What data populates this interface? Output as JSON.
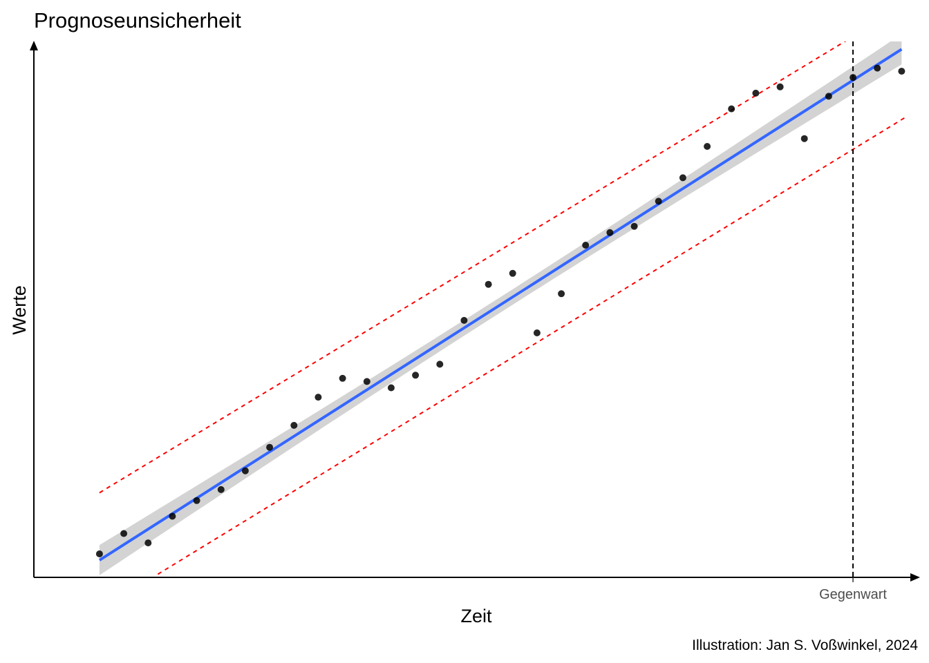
{
  "chart_data": {
    "type": "scatter",
    "title": "Prognoseunsicherheit",
    "xlabel": "Zeit",
    "ylabel": "Werte",
    "caption": "Illustration: Jan S. Voßwinkel, 2024",
    "x_ticks": [
      {
        "x": 32,
        "label": "Gegenwart"
      }
    ],
    "xlim": [
      -1.7,
      34.7
    ],
    "ylim": [
      0.3,
      34.5
    ],
    "grid": false,
    "x": [
      1,
      2,
      3,
      4,
      5,
      6,
      7,
      8,
      9,
      10,
      11,
      12,
      13,
      14,
      15,
      16,
      17,
      18,
      19,
      20,
      21,
      22,
      23,
      24,
      25,
      26,
      27,
      28,
      29,
      30,
      31,
      32,
      33,
      34
    ],
    "y": [
      1.8,
      3.1,
      2.5,
      4.2,
      5.2,
      5.9,
      7.1,
      8.6,
      10.0,
      11.8,
      13.0,
      12.8,
      12.4,
      13.2,
      13.9,
      16.7,
      19.0,
      19.7,
      15.9,
      18.4,
      21.5,
      22.3,
      22.7,
      24.3,
      25.8,
      27.8,
      30.2,
      31.2,
      31.6,
      28.3,
      31.0,
      32.2,
      32.8,
      32.6
    ],
    "fit": {
      "method": "linear regression",
      "color": "#3366ff",
      "x_range": [
        1,
        34
      ],
      "y_start": 1.4,
      "y_end": 34.0,
      "ribbon_color": "#d3d3d3"
    },
    "prediction_band": {
      "color": "#ff0000",
      "style": "dashed",
      "upper": {
        "x": [
          1,
          32.2
        ],
        "y": [
          5.7,
          35.0
        ]
      },
      "lower": {
        "x": [
          3.4,
          34.2
        ],
        "y": [
          0.5,
          29.7
        ]
      }
    },
    "reference_line": {
      "x": 32,
      "style": "dashed",
      "color": "#000000"
    },
    "colors": {
      "points": "#000000",
      "axes": "#000000"
    }
  }
}
